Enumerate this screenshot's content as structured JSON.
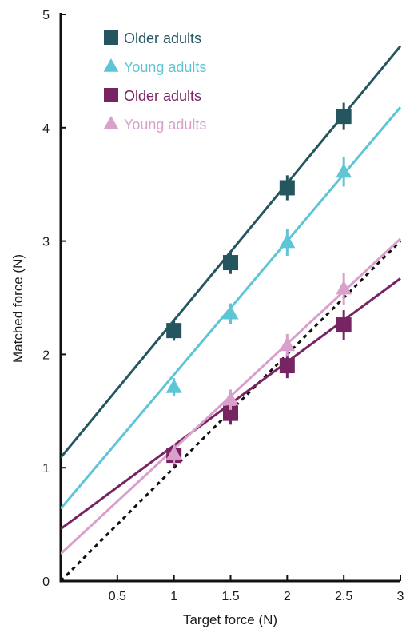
{
  "chart_data": {
    "type": "scatter",
    "title": "",
    "xlabel": "Target force (N)",
    "ylabel": "Matched force (N)",
    "xlim": [
      0,
      3
    ],
    "ylim": [
      0,
      5
    ],
    "x_ticks": [
      0.5,
      1,
      1.5,
      2,
      2.5,
      3
    ],
    "x_tick_labels": [
      "0.5",
      "1",
      "1.5",
      "2",
      "2.5",
      "3"
    ],
    "y_ticks": [
      0,
      1,
      2,
      3,
      4,
      5
    ],
    "y_tick_labels": [
      "0",
      "1",
      "2",
      "3",
      "4",
      "5"
    ],
    "grid": false,
    "legend_position": "top-left",
    "identity_line": {
      "style": "dotted",
      "color": "#111111",
      "from": [
        0,
        0
      ],
      "to": [
        3,
        3
      ]
    },
    "series": [
      {
        "name": "Older adults",
        "marker": "square",
        "color": "#255660",
        "x": [
          1,
          1.5,
          2,
          2.5
        ],
        "y": [
          2.21,
          2.81,
          3.47,
          4.1
        ],
        "error": [
          0.09,
          0.1,
          0.11,
          0.12
        ],
        "fit": {
          "from": [
            0,
            1.09
          ],
          "to": [
            3,
            4.72
          ]
        }
      },
      {
        "name": "Young adults",
        "marker": "triangle",
        "color": "#5cc6d6",
        "x": [
          1,
          1.5,
          2,
          2.5
        ],
        "y": [
          1.71,
          2.36,
          2.99,
          3.61
        ],
        "error": [
          0.08,
          0.09,
          0.12,
          0.13
        ],
        "fit": {
          "from": [
            0,
            0.64
          ],
          "to": [
            3,
            4.18
          ]
        }
      },
      {
        "name": "Older adults",
        "marker": "square",
        "color": "#772463",
        "x": [
          1,
          1.5,
          2,
          2.5
        ],
        "y": [
          1.11,
          1.48,
          1.9,
          2.26
        ],
        "error": [
          0.1,
          0.1,
          0.11,
          0.13
        ],
        "fit": {
          "from": [
            0,
            0.46
          ],
          "to": [
            3,
            2.67
          ]
        }
      },
      {
        "name": "Young adults",
        "marker": "triangle",
        "color": "#d9a0cc",
        "x": [
          1,
          1.5,
          2,
          2.5
        ],
        "y": [
          1.12,
          1.6,
          2.08,
          2.58
        ],
        "error": [
          0.09,
          0.09,
          0.1,
          0.14
        ],
        "fit": {
          "from": [
            0,
            0.24
          ],
          "to": [
            3,
            3.02
          ]
        }
      }
    ]
  }
}
